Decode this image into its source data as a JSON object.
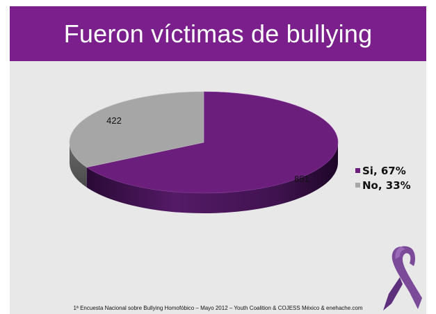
{
  "slide": {
    "title": "Fueron víctimas de bullying",
    "footer": "1ª Encuesta Nacional sobre Bullying Homofóbico – Mayo 2012 – Youth Coalition & COJESS México & enehache.com",
    "ribbon": "awareness-ribbon-icon"
  },
  "chart_data": {
    "type": "pie",
    "title": "Fueron víctimas de bullying",
    "style": "3d",
    "categories": [
      "Si",
      "No"
    ],
    "values": [
      851,
      422
    ],
    "percent": [
      67,
      33
    ],
    "legend": [
      "Si, 67%",
      "No, 33%"
    ],
    "legend_position": "right",
    "colors": [
      "#6b1e7c",
      "#a6a6a6"
    ],
    "side_colors": [
      "#3c0f49",
      "#5e5e5e"
    ]
  }
}
